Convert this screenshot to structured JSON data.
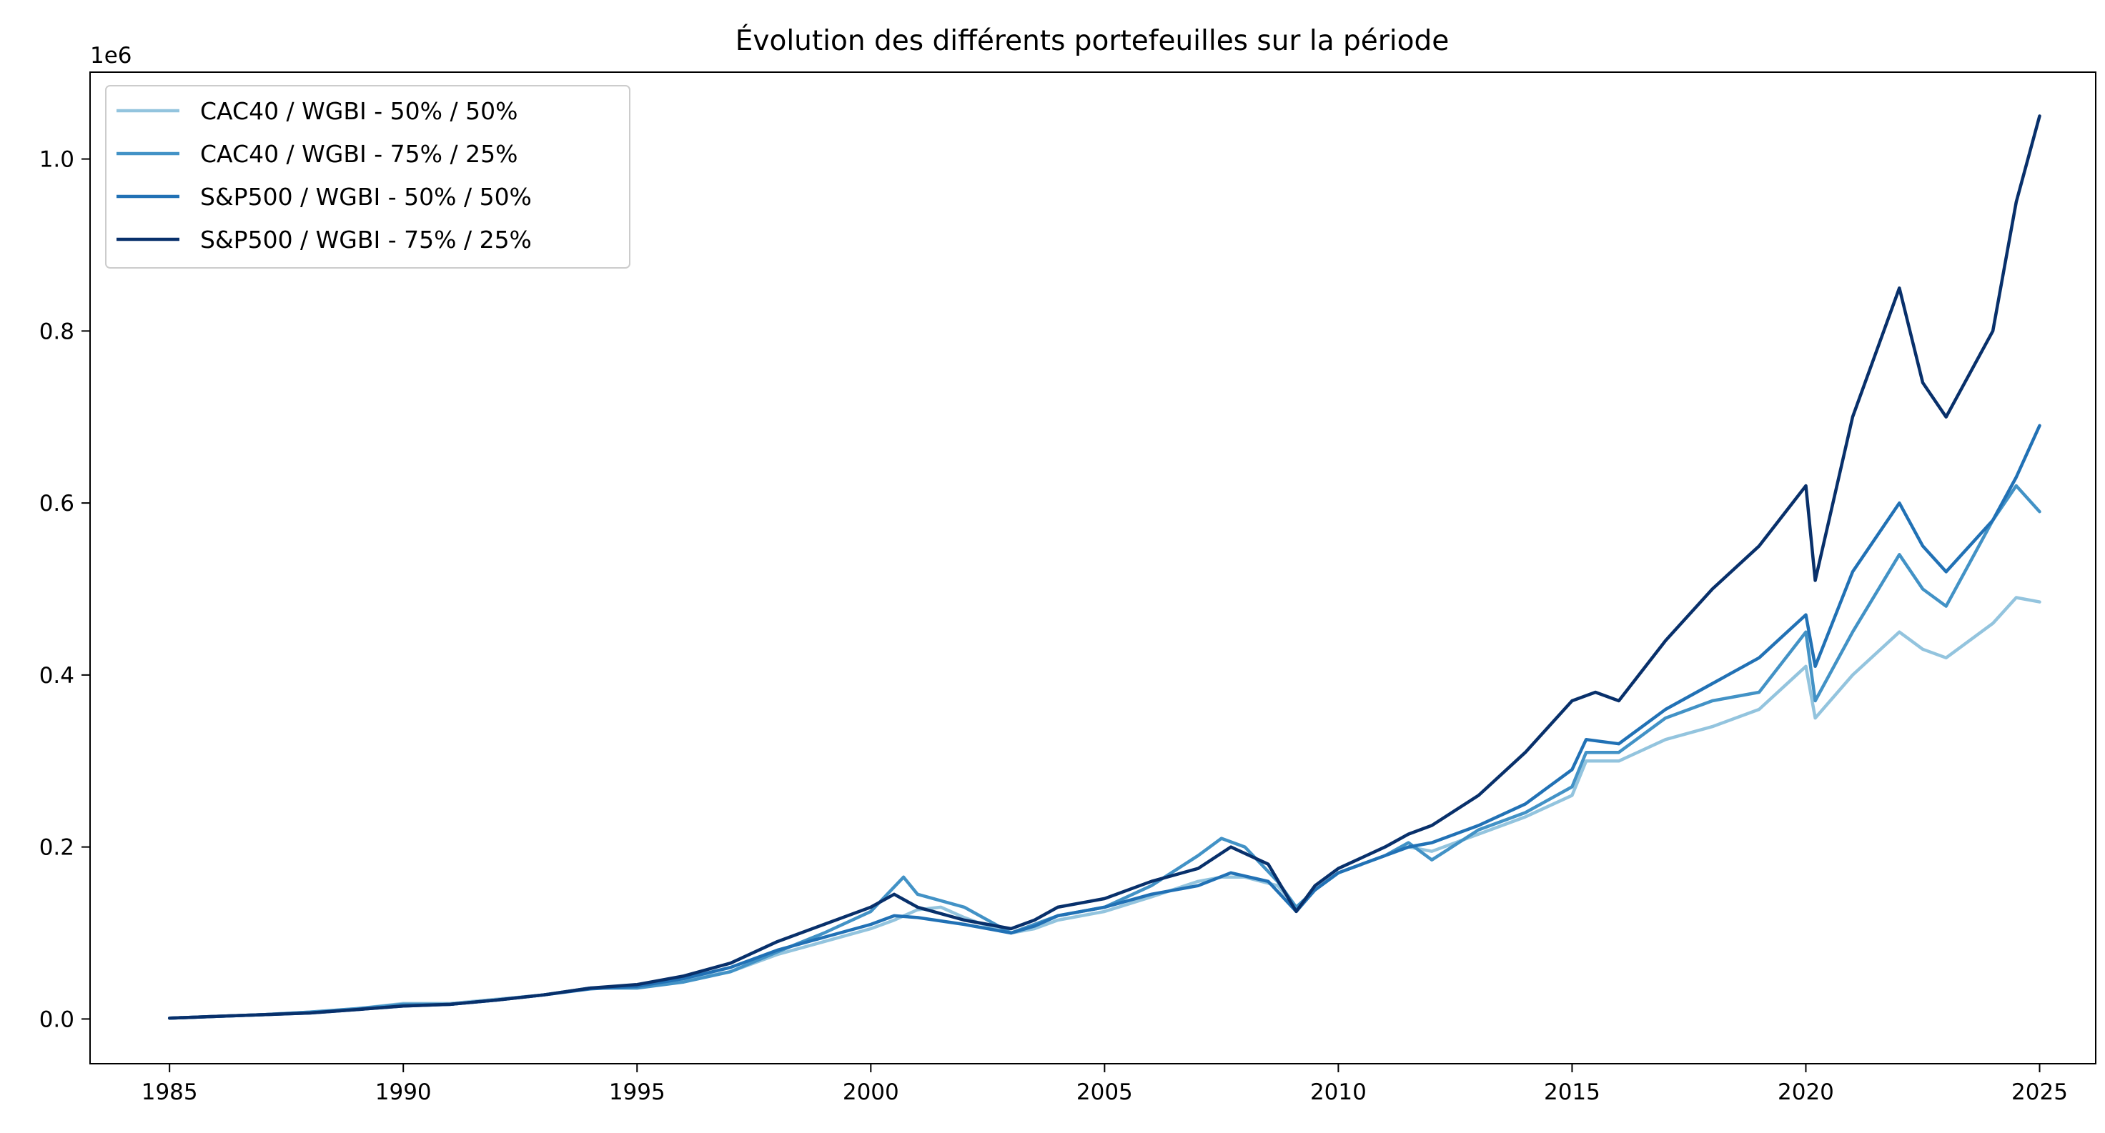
{
  "chart_data": {
    "type": "line",
    "title": "Évolution des différents portefeuilles sur la période",
    "xlabel": "",
    "ylabel": "",
    "offset_label": "1e6",
    "xlim": [
      1983.3,
      2026.2
    ],
    "ylim": [
      -0.052,
      1.101
    ],
    "grid": false,
    "legend_position": "top-left",
    "x_ticks": [
      1985,
      1990,
      1995,
      2000,
      2005,
      2010,
      2015,
      2020,
      2025
    ],
    "x_tick_labels": [
      "1985",
      "1990",
      "1995",
      "2000",
      "2005",
      "2010",
      "2015",
      "2020",
      "2025"
    ],
    "y_ticks": [
      0.0,
      0.2,
      0.4,
      0.6,
      0.8,
      1.0
    ],
    "y_tick_labels": [
      "0.0",
      "0.2",
      "0.4",
      "0.6",
      "0.8",
      "1.0"
    ],
    "series": [
      {
        "name": "CAC40 / WGBI - 50% / 50%",
        "color": "#93c4de",
        "points": [
          [
            1985,
            0.001
          ],
          [
            1986,
            0.003
          ],
          [
            1987,
            0.005
          ],
          [
            1988,
            0.008
          ],
          [
            1989,
            0.012
          ],
          [
            1990,
            0.018
          ],
          [
            1991,
            0.018
          ],
          [
            1992,
            0.023
          ],
          [
            1993,
            0.028
          ],
          [
            1994,
            0.036
          ],
          [
            1995,
            0.038
          ],
          [
            1996,
            0.045
          ],
          [
            1997,
            0.055
          ],
          [
            1998,
            0.075
          ],
          [
            1999,
            0.09
          ],
          [
            2000,
            0.105
          ],
          [
            2000.5,
            0.115
          ],
          [
            2001,
            0.127
          ],
          [
            2001.5,
            0.13
          ],
          [
            2002,
            0.118
          ],
          [
            2002.5,
            0.108
          ],
          [
            2003,
            0.1
          ],
          [
            2003.5,
            0.105
          ],
          [
            2004,
            0.115
          ],
          [
            2005,
            0.125
          ],
          [
            2006,
            0.142
          ],
          [
            2007,
            0.16
          ],
          [
            2007.5,
            0.165
          ],
          [
            2008,
            0.165
          ],
          [
            2008.7,
            0.155
          ],
          [
            2009.1,
            0.13
          ],
          [
            2009.5,
            0.15
          ],
          [
            2010,
            0.17
          ],
          [
            2011,
            0.19
          ],
          [
            2011.5,
            0.2
          ],
          [
            2012,
            0.195
          ],
          [
            2013,
            0.215
          ],
          [
            2014,
            0.235
          ],
          [
            2015,
            0.26
          ],
          [
            2015.3,
            0.3
          ],
          [
            2016,
            0.3
          ],
          [
            2017,
            0.325
          ],
          [
            2018,
            0.34
          ],
          [
            2019,
            0.36
          ],
          [
            2020,
            0.41
          ],
          [
            2020.2,
            0.35
          ],
          [
            2021,
            0.4
          ],
          [
            2022,
            0.45
          ],
          [
            2022.5,
            0.43
          ],
          [
            2023,
            0.42
          ],
          [
            2024,
            0.46
          ],
          [
            2024.5,
            0.49
          ],
          [
            2025,
            0.485
          ]
        ]
      },
      {
        "name": "CAC40 / WGBI - 75% / 25%",
        "color": "#4292c6",
        "points": [
          [
            1985,
            0.001
          ],
          [
            1986,
            0.003
          ],
          [
            1987,
            0.005
          ],
          [
            1988,
            0.008
          ],
          [
            1989,
            0.012
          ],
          [
            1990,
            0.017
          ],
          [
            1991,
            0.017
          ],
          [
            1992,
            0.022
          ],
          [
            1993,
            0.028
          ],
          [
            1994,
            0.036
          ],
          [
            1995,
            0.036
          ],
          [
            1996,
            0.043
          ],
          [
            1997,
            0.055
          ],
          [
            1998,
            0.078
          ],
          [
            1999,
            0.1
          ],
          [
            2000,
            0.125
          ],
          [
            2000.7,
            0.165
          ],
          [
            2001,
            0.145
          ],
          [
            2002,
            0.13
          ],
          [
            2003,
            0.1
          ],
          [
            2003.5,
            0.11
          ],
          [
            2004,
            0.12
          ],
          [
            2005,
            0.13
          ],
          [
            2006,
            0.155
          ],
          [
            2007,
            0.19
          ],
          [
            2007.5,
            0.21
          ],
          [
            2008,
            0.2
          ],
          [
            2008.7,
            0.16
          ],
          [
            2009.1,
            0.13
          ],
          [
            2009.5,
            0.15
          ],
          [
            2010,
            0.17
          ],
          [
            2011,
            0.19
          ],
          [
            2011.5,
            0.205
          ],
          [
            2012,
            0.185
          ],
          [
            2013,
            0.22
          ],
          [
            2014,
            0.24
          ],
          [
            2015,
            0.27
          ],
          [
            2015.3,
            0.31
          ],
          [
            2016,
            0.31
          ],
          [
            2017,
            0.35
          ],
          [
            2018,
            0.37
          ],
          [
            2019,
            0.38
          ],
          [
            2020,
            0.45
          ],
          [
            2020.2,
            0.37
          ],
          [
            2021,
            0.45
          ],
          [
            2022,
            0.54
          ],
          [
            2022.5,
            0.5
          ],
          [
            2023,
            0.48
          ],
          [
            2024,
            0.58
          ],
          [
            2024.5,
            0.62
          ],
          [
            2025,
            0.59
          ]
        ]
      },
      {
        "name": "S&P500 / WGBI - 50% / 50%",
        "color": "#2171b5",
        "points": [
          [
            1985,
            0.001
          ],
          [
            1986,
            0.003
          ],
          [
            1987,
            0.005
          ],
          [
            1988,
            0.007
          ],
          [
            1989,
            0.011
          ],
          [
            1990,
            0.015
          ],
          [
            1991,
            0.017
          ],
          [
            1992,
            0.022
          ],
          [
            1993,
            0.028
          ],
          [
            1994,
            0.035
          ],
          [
            1995,
            0.038
          ],
          [
            1996,
            0.047
          ],
          [
            1997,
            0.06
          ],
          [
            1998,
            0.08
          ],
          [
            1999,
            0.095
          ],
          [
            2000,
            0.11
          ],
          [
            2000.5,
            0.12
          ],
          [
            2001,
            0.118
          ],
          [
            2002,
            0.11
          ],
          [
            2003,
            0.1
          ],
          [
            2003.5,
            0.108
          ],
          [
            2004,
            0.12
          ],
          [
            2005,
            0.13
          ],
          [
            2006,
            0.145
          ],
          [
            2007,
            0.155
          ],
          [
            2007.7,
            0.17
          ],
          [
            2008.5,
            0.16
          ],
          [
            2009.1,
            0.125
          ],
          [
            2009.5,
            0.15
          ],
          [
            2010,
            0.17
          ],
          [
            2011,
            0.19
          ],
          [
            2011.5,
            0.2
          ],
          [
            2012,
            0.205
          ],
          [
            2013,
            0.225
          ],
          [
            2014,
            0.25
          ],
          [
            2015,
            0.29
          ],
          [
            2015.3,
            0.325
          ],
          [
            2016,
            0.32
          ],
          [
            2017,
            0.36
          ],
          [
            2018,
            0.39
          ],
          [
            2019,
            0.42
          ],
          [
            2020,
            0.47
          ],
          [
            2020.2,
            0.41
          ],
          [
            2021,
            0.52
          ],
          [
            2022,
            0.6
          ],
          [
            2022.5,
            0.55
          ],
          [
            2023,
            0.52
          ],
          [
            2024,
            0.58
          ],
          [
            2024.5,
            0.63
          ],
          [
            2025,
            0.69
          ]
        ]
      },
      {
        "name": "S&P500 / WGBI - 75% / 25%",
        "color": "#08306b",
        "points": [
          [
            1985,
            0.001
          ],
          [
            1986,
            0.003
          ],
          [
            1987,
            0.005
          ],
          [
            1988,
            0.007
          ],
          [
            1989,
            0.011
          ],
          [
            1990,
            0.015
          ],
          [
            1991,
            0.017
          ],
          [
            1992,
            0.022
          ],
          [
            1993,
            0.028
          ],
          [
            1994,
            0.036
          ],
          [
            1995,
            0.04
          ],
          [
            1996,
            0.05
          ],
          [
            1997,
            0.065
          ],
          [
            1998,
            0.09
          ],
          [
            1999,
            0.11
          ],
          [
            2000,
            0.13
          ],
          [
            2000.5,
            0.145
          ],
          [
            2001,
            0.13
          ],
          [
            2002,
            0.115
          ],
          [
            2003,
            0.105
          ],
          [
            2003.5,
            0.115
          ],
          [
            2004,
            0.13
          ],
          [
            2005,
            0.14
          ],
          [
            2006,
            0.16
          ],
          [
            2007,
            0.175
          ],
          [
            2007.7,
            0.2
          ],
          [
            2008.5,
            0.18
          ],
          [
            2009.1,
            0.125
          ],
          [
            2009.5,
            0.155
          ],
          [
            2010,
            0.175
          ],
          [
            2011,
            0.2
          ],
          [
            2011.5,
            0.215
          ],
          [
            2012,
            0.225
          ],
          [
            2013,
            0.26
          ],
          [
            2014,
            0.31
          ],
          [
            2015,
            0.37
          ],
          [
            2015.5,
            0.38
          ],
          [
            2016,
            0.37
          ],
          [
            2017,
            0.44
          ],
          [
            2018,
            0.5
          ],
          [
            2019,
            0.55
          ],
          [
            2020,
            0.62
          ],
          [
            2020.2,
            0.51
          ],
          [
            2021,
            0.7
          ],
          [
            2022,
            0.85
          ],
          [
            2022.5,
            0.74
          ],
          [
            2023,
            0.7
          ],
          [
            2024,
            0.8
          ],
          [
            2024.5,
            0.95
          ],
          [
            2025,
            1.05
          ]
        ]
      }
    ]
  }
}
